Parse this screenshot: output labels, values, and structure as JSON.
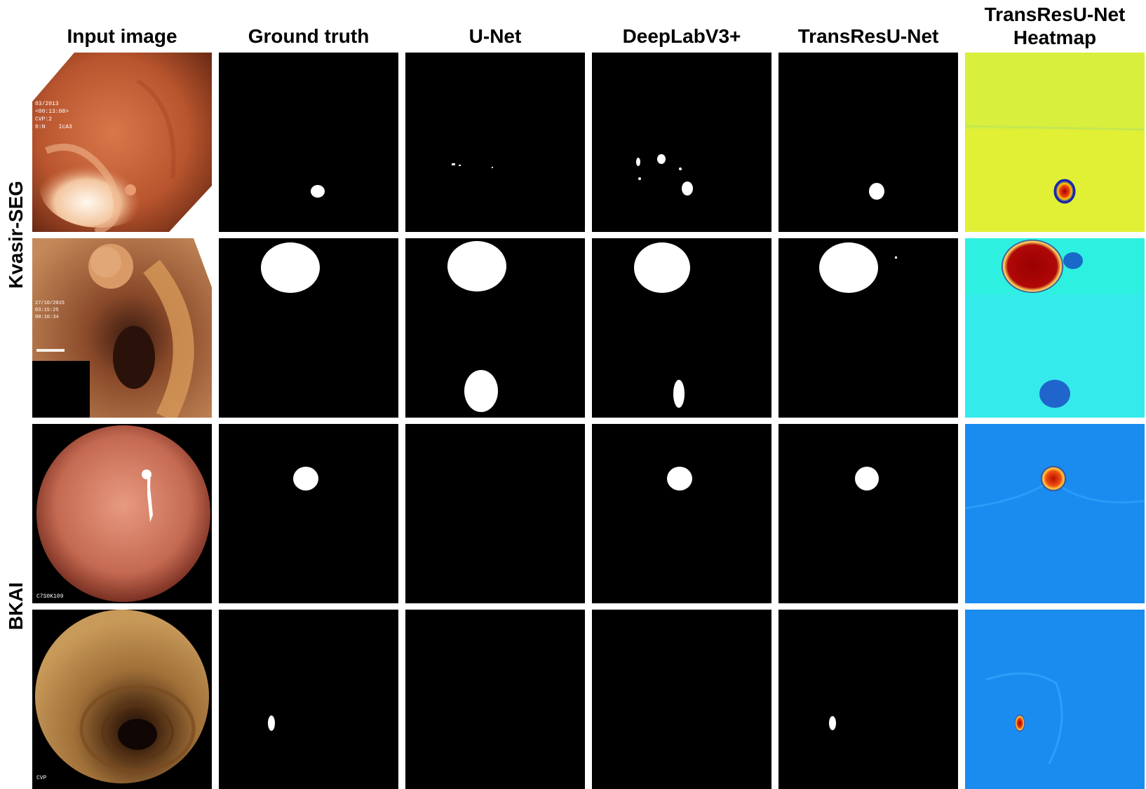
{
  "columns": {
    "input": "Input image",
    "ground_truth": "Ground truth",
    "unet": "U-Net",
    "deeplab": "DeepLabV3+",
    "transresunet": "TransResU-Net",
    "heatmap_line1": "TransResU-Net",
    "heatmap_line2": "Heatmap"
  },
  "datasets": {
    "kvasir": "Kvasir-SEG",
    "bkai": "BKAI"
  },
  "overlay_text": {
    "row1": [
      "03/2013",
      "<00:13:08>",
      "CVP:2",
      "0:N",
      "IcA3"
    ],
    "row2": [
      "27/10/2015",
      "03:15:25",
      "00:10:34"
    ],
    "row3": [
      "C7S0K109"
    ],
    "row4": [
      "CVP"
    ]
  },
  "colors": {
    "mask_background": "#000000",
    "mask_foreground": "#ffffff",
    "heatmap_hot": "#a50000",
    "heatmap_cold_kvasir1": "#e3f23a",
    "heatmap_cold_kvasir2": "#2ef0e0",
    "heatmap_cold_bkai": "#1a8cf0"
  }
}
